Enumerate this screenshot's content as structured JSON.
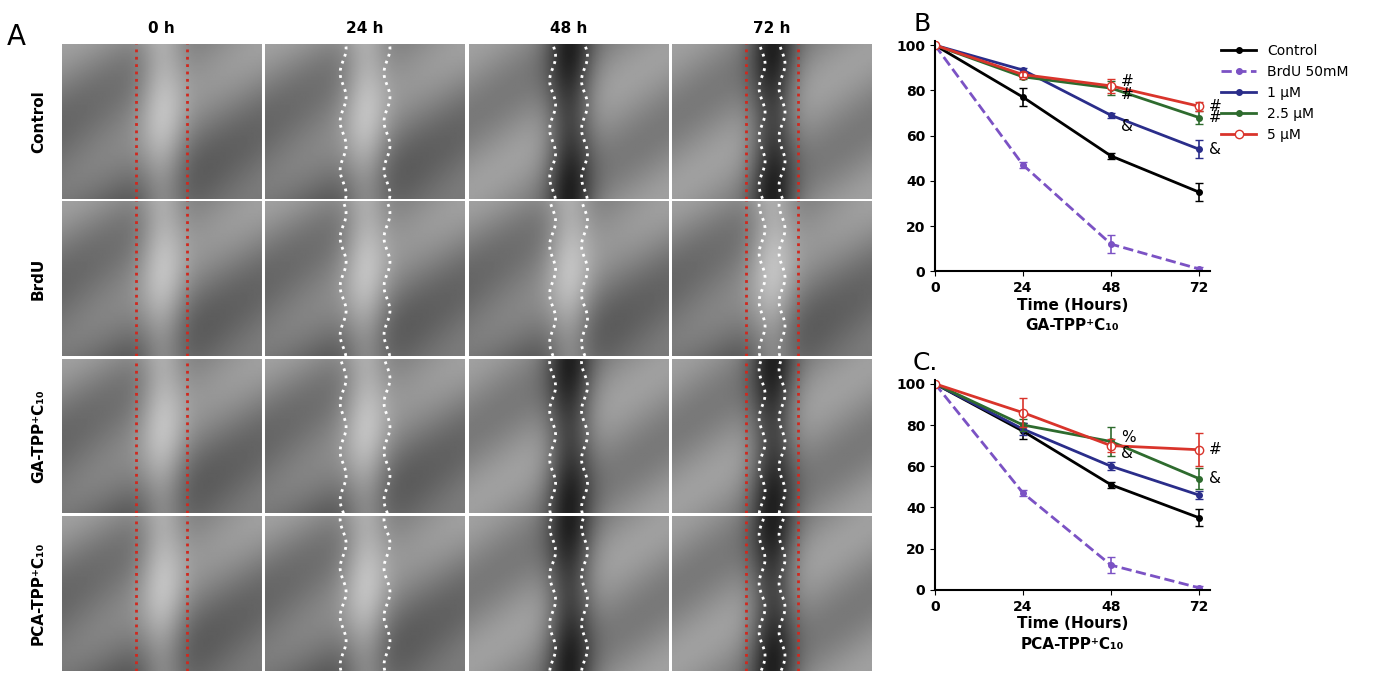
{
  "panel_a": {
    "label": "A",
    "columns": [
      "0 h",
      "24 h",
      "48 h",
      "72 h"
    ],
    "rows": [
      "Control",
      "BrdU",
      "GA-TPP⁺C₁₀",
      "PCA-TPP⁺C₁₀"
    ]
  },
  "chart_data": [
    {
      "type": "line",
      "title": "B",
      "x_label": "Time (Hours)",
      "subtitle": "GA-TPP⁺C₁₀",
      "x": [
        0,
        24,
        48,
        72
      ],
      "xlim": [
        0,
        75
      ],
      "xticks": [
        0,
        24,
        48,
        72
      ],
      "ylim": [
        0,
        102
      ],
      "yticks": [
        0,
        20,
        40,
        60,
        80,
        100
      ],
      "legend": "upper right",
      "series": [
        {
          "name": "Control",
          "color": "#000000",
          "marker": "dot",
          "line_style": "solid",
          "values": [
            100,
            77,
            51,
            35
          ],
          "errors": [
            null,
            4,
            1.5,
            4
          ]
        },
        {
          "name": "BrdU 50mM",
          "color": "#7b52c4",
          "marker": "dot",
          "line_style": "dashed",
          "values": [
            100,
            47,
            12,
            1
          ],
          "errors": [
            null,
            1.5,
            4,
            1
          ]
        },
        {
          "name": "1 μM",
          "color": "#2a2d8a",
          "marker": "dot",
          "line_style": "solid",
          "values": [
            100,
            89,
            69,
            54
          ],
          "errors": [
            null,
            1,
            1,
            4
          ]
        },
        {
          "name": "2.5 μM",
          "color": "#2e6b2e",
          "marker": "dot",
          "line_style": "solid",
          "values": [
            100,
            86,
            81,
            68
          ],
          "errors": [
            null,
            1,
            3,
            3
          ]
        },
        {
          "name": "5 μM",
          "color": "#d9342b",
          "marker": "open_circle",
          "line_style": "solid",
          "values": [
            100,
            87,
            82,
            73
          ],
          "errors": [
            null,
            1,
            3,
            2
          ]
        }
      ],
      "annotations": [
        {
          "x": 48,
          "y": 84,
          "text": "#"
        },
        {
          "x": 48,
          "y": 78,
          "text": "#"
        },
        {
          "x": 48,
          "y": 64,
          "text": "&"
        },
        {
          "x": 72,
          "y": 73,
          "text": "#"
        },
        {
          "x": 72,
          "y": 68,
          "text": "#"
        },
        {
          "x": 72,
          "y": 54,
          "text": "&"
        }
      ]
    },
    {
      "type": "line",
      "title": "C.",
      "x_label": "Time (Hours)",
      "subtitle": "PCA-TPP⁺C₁₀",
      "x": [
        0,
        24,
        48,
        72
      ],
      "xlim": [
        0,
        75
      ],
      "xticks": [
        0,
        24,
        48,
        72
      ],
      "ylim": [
        0,
        102
      ],
      "yticks": [
        0,
        20,
        40,
        60,
        80,
        100
      ],
      "series": [
        {
          "color": "#000000",
          "marker": "dot",
          "line_style": "solid",
          "values": [
            100,
            77,
            51,
            35
          ],
          "errors": [
            null,
            4,
            1.5,
            4
          ]
        },
        {
          "color": "#7b52c4",
          "marker": "dot",
          "line_style": "dashed",
          "values": [
            100,
            47,
            12,
            1
          ],
          "errors": [
            null,
            1.5,
            4,
            1
          ]
        },
        {
          "color": "#2a2d8a",
          "marker": "dot",
          "line_style": "solid",
          "values": [
            100,
            78,
            60,
            46
          ],
          "errors": [
            null,
            3,
            2,
            2
          ]
        },
        {
          "color": "#2e6b2e",
          "marker": "dot",
          "line_style": "solid",
          "values": [
            100,
            80,
            72,
            54
          ],
          "errors": [
            null,
            3,
            7,
            5
          ]
        },
        {
          "color": "#d9342b",
          "marker": "open_circle",
          "line_style": "solid",
          "values": [
            100,
            86,
            70,
            68
          ],
          "errors": [
            null,
            7,
            3,
            8
          ]
        }
      ],
      "annotations": [
        {
          "x": 48,
          "y": 74,
          "text": "%"
        },
        {
          "x": 48,
          "y": 66,
          "text": "&"
        },
        {
          "x": 72,
          "y": 68,
          "text": "#"
        },
        {
          "x": 72,
          "y": 54,
          "text": "&"
        }
      ]
    }
  ]
}
